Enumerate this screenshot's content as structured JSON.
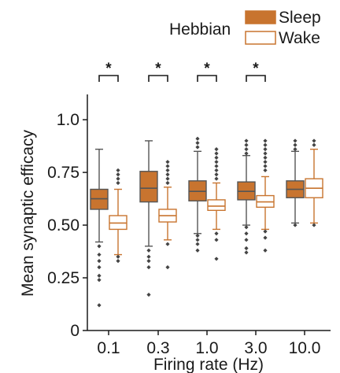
{
  "chart_data": {
    "type": "box",
    "legend_title": "Hebbian",
    "xlabel": "Firing rate (Hz)",
    "ylabel": "Mean synaptic efficacy",
    "categories": [
      "0.1",
      "0.3",
      "1.0",
      "3.0",
      "10.0"
    ],
    "ylim": [
      0,
      1.12
    ],
    "yticks": [
      {
        "value": 0,
        "label": "0"
      },
      {
        "value": 0.25,
        "label": "0.25"
      },
      {
        "value": 0.5,
        "label": "0.50"
      },
      {
        "value": 0.75,
        "label": "0.75"
      },
      {
        "value": 1.0,
        "label": "1.0"
      }
    ],
    "significance": [
      "*",
      "*",
      "*",
      "*",
      ""
    ],
    "series": [
      {
        "name": "Sleep",
        "color": "#c8742f",
        "fill": "filled",
        "boxes": [
          {
            "q1": 0.575,
            "median": 0.625,
            "q3": 0.67,
            "whisker_low": 0.42,
            "whisker_high": 0.86,
            "outliers": [
              0.4,
              0.36,
              0.33,
              0.3,
              0.26,
              0.24,
              0.12
            ]
          },
          {
            "q1": 0.61,
            "median": 0.675,
            "q3": 0.755,
            "whisker_low": 0.4,
            "whisker_high": 0.9,
            "outliers": [
              0.38,
              0.35,
              0.33,
              0.3,
              0.17
            ]
          },
          {
            "q1": 0.615,
            "median": 0.66,
            "q3": 0.71,
            "whisker_low": 0.46,
            "whisker_high": 0.85,
            "outliers": [
              0.91,
              0.89,
              0.87,
              0.45,
              0.43,
              0.41,
              0.38
            ]
          },
          {
            "q1": 0.62,
            "median": 0.66,
            "q3": 0.705,
            "whisker_low": 0.5,
            "whisker_high": 0.83,
            "outliers": [
              0.9,
              0.88,
              0.86,
              0.84,
              0.49,
              0.46,
              0.43,
              0.39,
              0.37
            ]
          },
          {
            "q1": 0.63,
            "median": 0.67,
            "q3": 0.71,
            "whisker_low": 0.51,
            "whisker_high": 0.85,
            "outliers": [
              0.9,
              0.88,
              0.86,
              0.5
            ]
          }
        ]
      },
      {
        "name": "Wake",
        "color": "#c8742f",
        "fill": "hollow",
        "boxes": [
          {
            "q1": 0.48,
            "median": 0.51,
            "q3": 0.545,
            "whisker_low": 0.36,
            "whisker_high": 0.67,
            "outliers": [
              0.76,
              0.74,
              0.72,
              0.7,
              0.35,
              0.33
            ]
          },
          {
            "q1": 0.515,
            "median": 0.545,
            "q3": 0.575,
            "whisker_low": 0.43,
            "whisker_high": 0.68,
            "outliers": [
              0.8,
              0.78,
              0.76,
              0.74,
              0.72,
              0.7,
              0.41,
              0.3
            ]
          },
          {
            "q1": 0.57,
            "median": 0.59,
            "q3": 0.62,
            "whisker_low": 0.48,
            "whisker_high": 0.7,
            "outliers": [
              0.86,
              0.84,
              0.82,
              0.8,
              0.78,
              0.76,
              0.74,
              0.72,
              0.46,
              0.43,
              0.34
            ]
          },
          {
            "q1": 0.585,
            "median": 0.61,
            "q3": 0.64,
            "whisker_low": 0.48,
            "whisker_high": 0.73,
            "outliers": [
              0.9,
              0.88,
              0.86,
              0.84,
              0.82,
              0.8,
              0.78,
              0.76,
              0.47,
              0.44,
              0.38
            ]
          },
          {
            "q1": 0.63,
            "median": 0.675,
            "q3": 0.72,
            "whisker_low": 0.51,
            "whisker_high": 0.86,
            "outliers": [
              0.9,
              0.88,
              0.5
            ]
          }
        ]
      }
    ],
    "grid": false,
    "legend_position": "top-right"
  }
}
